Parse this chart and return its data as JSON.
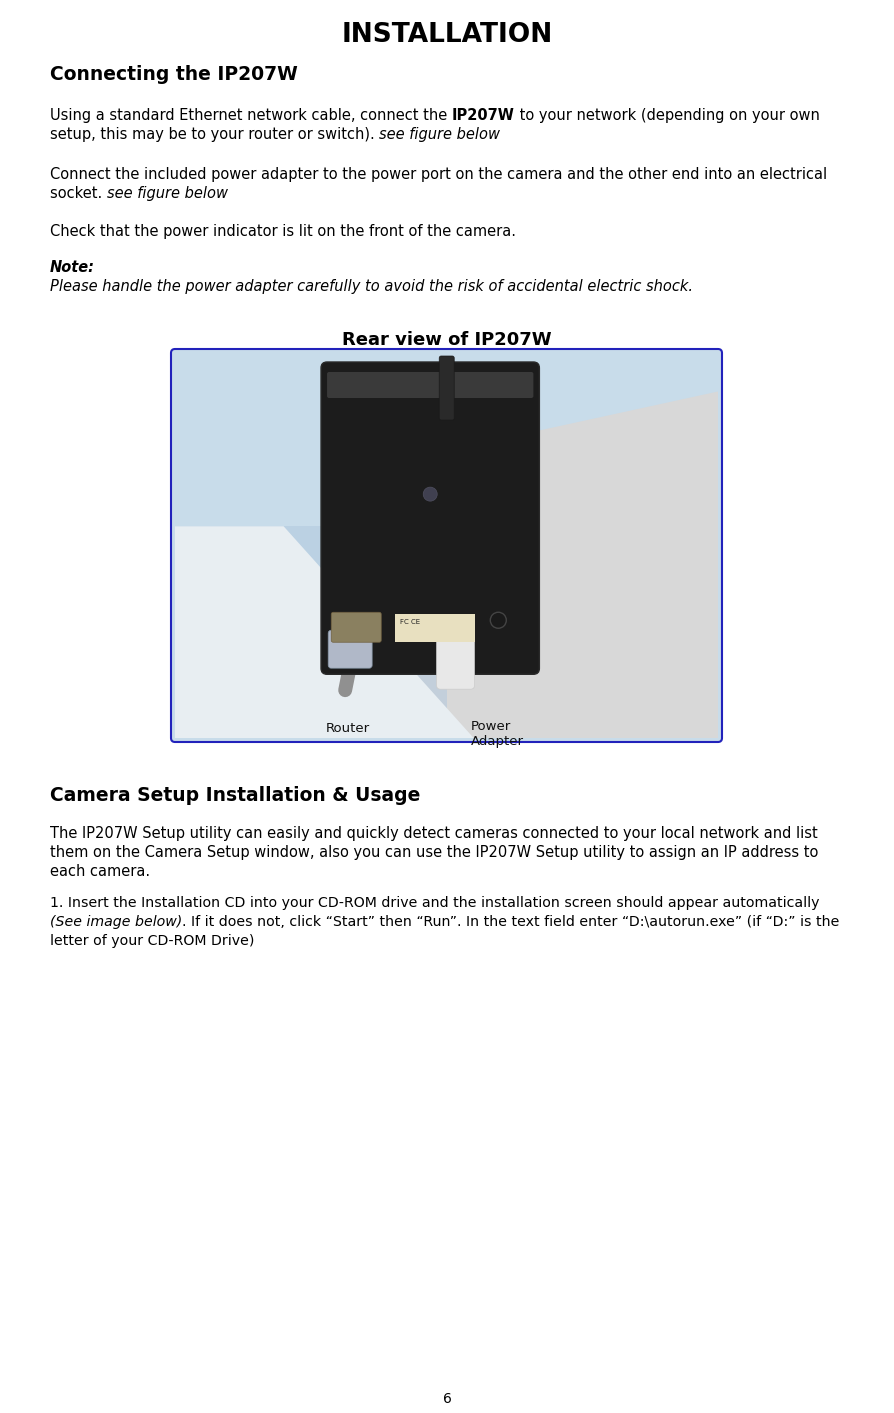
{
  "title": "INSTALLATION",
  "s1_heading": "Connecting the IP207W",
  "p1a": "Using a standard Ethernet network cable, connect the ",
  "p1b": "IP207W",
  "p1c": " to your network (depending on your own",
  "p1d": "setup, this may be to your router or switch). ",
  "p1e": "see figure below",
  "p2a": "Connect the included power adapter to the power port on the camera and the other end into an electrical",
  "p2b": "socket. ",
  "p2c": "see figure below",
  "p3": "Check that the power indicator is lit on the front of the camera.",
  "note_head": "Note:",
  "note_body": "Please handle the power adapter carefully to avoid the risk of accidental electric shock.",
  "img_caption": "Rear view of IP207W",
  "s2_heading": "Camera Setup Installation & Usage",
  "s2p1": "The IP207W Setup utility can easily and quickly detect cameras connected to your local network and list",
  "s2p2": "them on the Camera Setup window, also you can use the IP207W Setup utility to assign an IP address to",
  "s2p3": "each camera.",
  "s2i1a": "1. Insert the Installation CD into your CD-ROM drive and the installation screen should appear automatically",
  "s2i1b": "(See image below)",
  "s2i1c": ". If it does not, click “Start” then “Run”. In the text field enter “D:\\autorun.exe” (if “D:” is the",
  "s2i1d": "letter of your CD-ROM Drive)",
  "page_num": "6",
  "bg": "#ffffff",
  "fg": "#000000",
  "img_border": "#2222bb",
  "img_bg_top_right": "#e0e8f0",
  "img_bg_main": "#c8dcea",
  "img_bg_dot": "#a8c4d8"
}
